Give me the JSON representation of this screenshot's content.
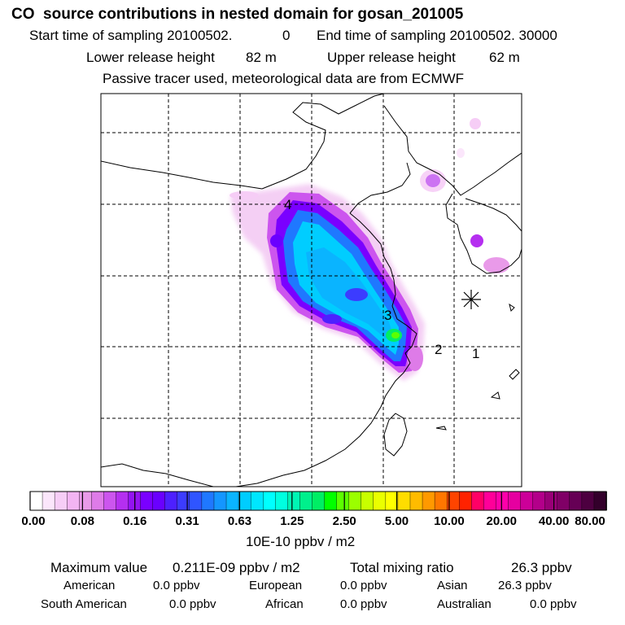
{
  "header": {
    "title": "CO  source contributions in nested domain for gosan_201005",
    "start_label": "Start time of sampling 20100502.",
    "start_value": "0",
    "end_label": "End time of sampling 20100502. 30000",
    "lower_label": "Lower release height",
    "lower_value": "82 m",
    "upper_label": "Upper release height",
    "upper_value": "62 m",
    "note": "Passive tracer used, meteorological data are from ECMWF"
  },
  "map": {
    "markers": [
      {
        "id": "m4",
        "label": "4"
      },
      {
        "id": "m3",
        "label": "3"
      },
      {
        "id": "m2",
        "label": "2"
      },
      {
        "id": "m1",
        "label": "1"
      }
    ]
  },
  "colorbar": {
    "ticks": [
      "0.00",
      "0.08",
      "0.16",
      "0.31",
      "0.63",
      "1.25",
      "2.50",
      "5.00",
      "10.00",
      "20.00",
      "40.00",
      "80.00"
    ],
    "unit": "10E-10 ppbv / m2",
    "colors": [
      "#ffffff",
      "#fbe6fb",
      "#f6cdf6",
      "#f2b4f2",
      "#e99ae9",
      "#de7be8",
      "#cc55ee",
      "#b52ff0",
      "#9413f2",
      "#7a00ff",
      "#6a00ff",
      "#4d20ff",
      "#3c3cff",
      "#2f55ff",
      "#1f78ff",
      "#1496ff",
      "#0ab4ff",
      "#00cdff",
      "#00e6ff",
      "#00ffff",
      "#00ffe0",
      "#00f5b4",
      "#00f08c",
      "#00ee64",
      "#00ff00",
      "#5cff00",
      "#9bff00",
      "#c8ff00",
      "#eaff00",
      "#ffff00",
      "#ffdd00",
      "#ffbb00",
      "#ff9900",
      "#ff7700",
      "#ff4400",
      "#ff2200",
      "#ff0066",
      "#ff0099",
      "#ff00aa",
      "#e600a0",
      "#cc0099",
      "#b3008a",
      "#990077",
      "#800066",
      "#660055",
      "#4d0040",
      "#33002b"
    ]
  },
  "stats": {
    "max_label": "Maximum value",
    "max_value": "0.211E-09 ppbv / m2",
    "total_label": "Total mixing ratio",
    "total_value": "26.3 ppbv",
    "regions": [
      {
        "name": "American",
        "value": "0.0 ppbv"
      },
      {
        "name": "European",
        "value": "0.0 ppbv"
      },
      {
        "name": "Asian",
        "value": "26.3 ppbv"
      },
      {
        "name": "South American",
        "value": "0.0 ppbv"
      },
      {
        "name": "African",
        "value": "0.0 ppbv"
      },
      {
        "name": "Australian",
        "value": "0.0 ppbv"
      }
    ]
  }
}
